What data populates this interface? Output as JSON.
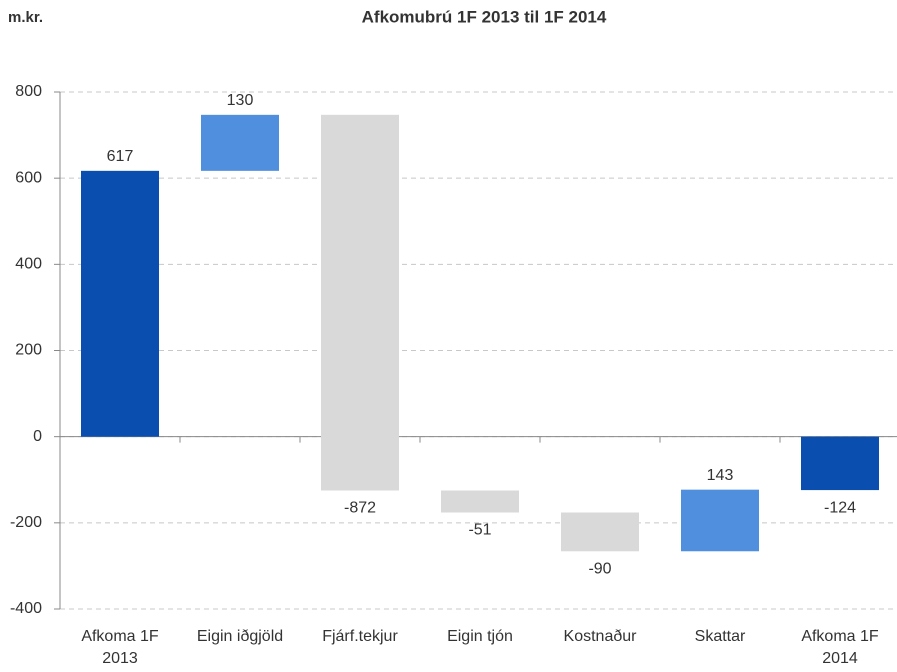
{
  "chart_data": {
    "type": "waterfall",
    "title": "Afkomubrú 1F 2013 til 1F 2014",
    "y_label": "m.kr.",
    "categories": [
      "Afkoma 1F 2013",
      "Eigin iðgjöld",
      "Fjárf.tekjur",
      "Eigin tjón",
      "Kostnaður",
      "Skattar",
      "Afkoma 1F 2014"
    ],
    "values": [
      617,
      130,
      -872,
      -51,
      -90,
      143,
      -124
    ],
    "total_color": "#0a4eaf",
    "increase_color": "#4f8fde",
    "decrease_color": "#d9d9d9",
    "ylim": [
      -400,
      800
    ],
    "yticks": [
      -400,
      -200,
      0,
      200,
      400,
      600,
      800
    ],
    "grid": true
  }
}
